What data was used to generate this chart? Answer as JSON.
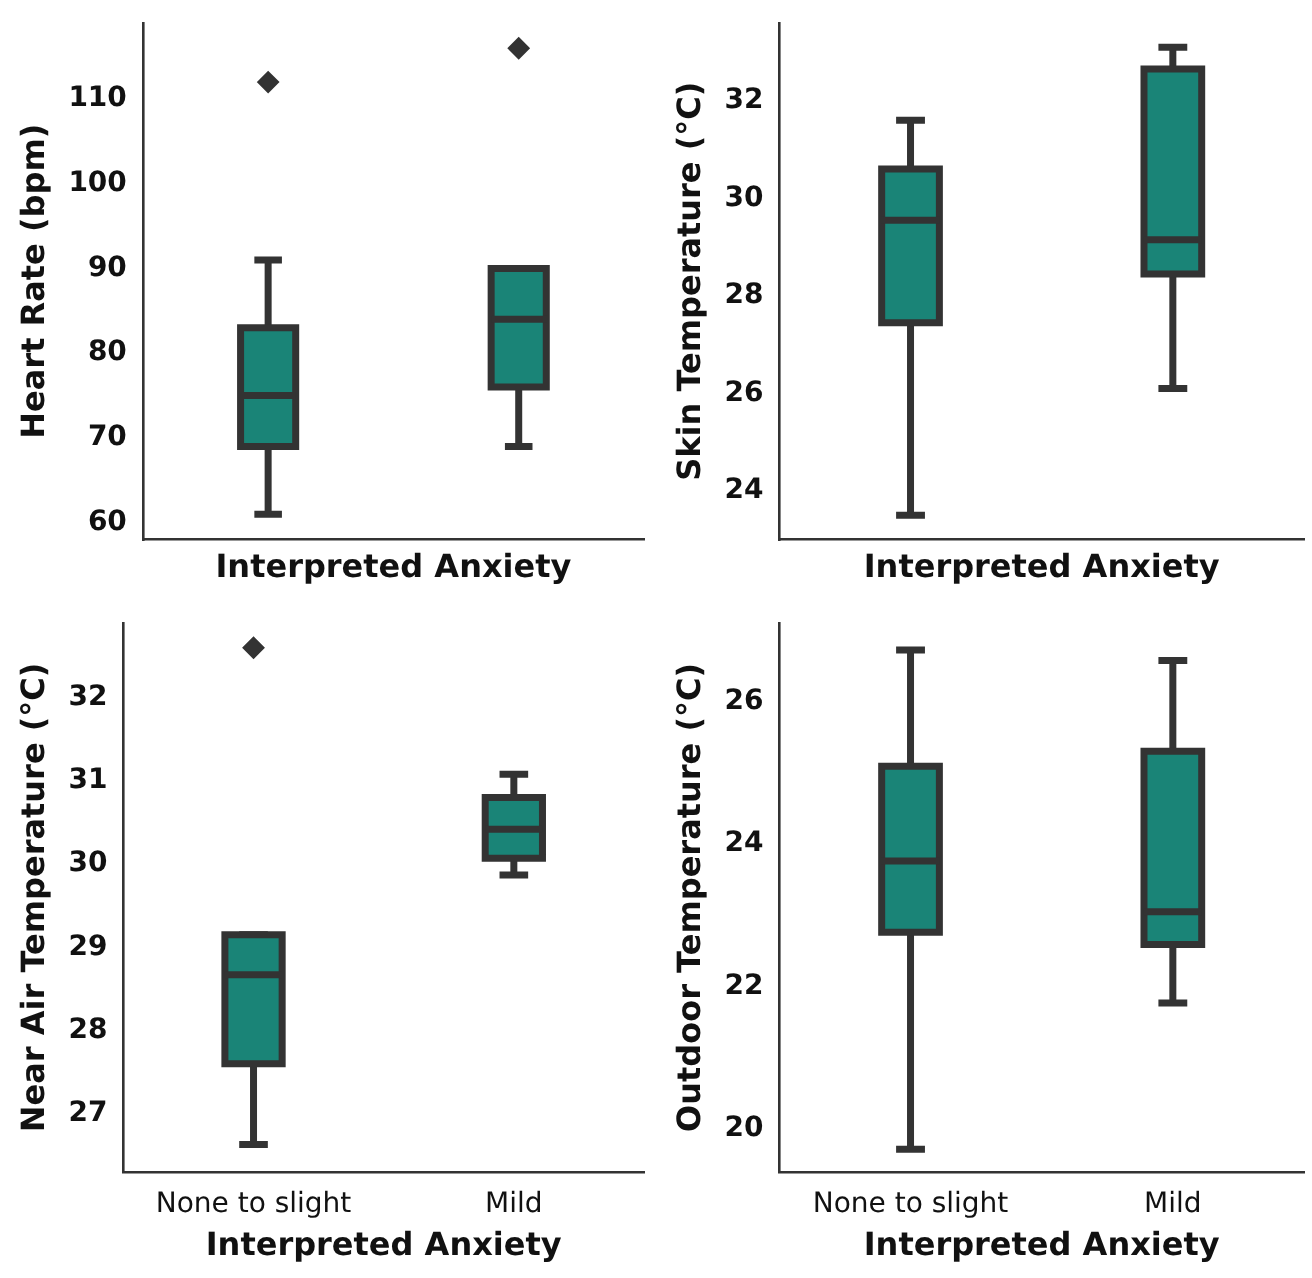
{
  "chart_data": [
    {
      "type": "box",
      "xlabel": "Interpreted Anxiety",
      "ylabel": "Heart Rate (bpm)",
      "categories": [
        null,
        null
      ],
      "tick_labels": "y",
      "color": "#1a8477",
      "marker": "diamond",
      "grid": false,
      "ylim": [
        58,
        119
      ],
      "yticks": [
        60,
        70,
        80,
        90,
        100,
        110
      ],
      "boxes": [
        {
          "low": 61,
          "q1": 69,
          "median": 75,
          "q3": 83,
          "high": 91,
          "outliers": [
            112
          ]
        },
        {
          "low": 69,
          "q1": 76,
          "median": 84,
          "q3": 90,
          "high": 90,
          "outliers": [
            116
          ]
        }
      ]
    },
    {
      "type": "box",
      "xlabel": "Interpreted Anxiety",
      "ylabel": "Skin Temperature (°C)",
      "categories": [
        null,
        null
      ],
      "tick_labels": "y",
      "color": "#1a8477",
      "marker": "diamond",
      "grid": false,
      "ylim": [
        23,
        33.6
      ],
      "yticks": [
        24,
        26,
        28,
        30,
        32
      ],
      "boxes": [
        {
          "low": 23.5,
          "q1": 27.45,
          "median": 29.55,
          "q3": 30.6,
          "high": 31.6
        },
        {
          "low": 26.1,
          "q1": 28.45,
          "median": 29.15,
          "q3": 32.65,
          "high": 33.1
        }
      ]
    },
    {
      "type": "box",
      "xlabel": "Interpreted Anxiety",
      "ylabel": "Near Air Temperature (°C)",
      "categories": [
        "None to slight",
        "Mild"
      ],
      "color": "#1a8477",
      "marker": "diamond",
      "grid": false,
      "ylim": [
        26.3,
        32.9
      ],
      "yticks": [
        27,
        28,
        29,
        30,
        31,
        32
      ],
      "boxes": [
        {
          "low": 26.63,
          "q1": 27.6,
          "median": 28.67,
          "q3": 29.15,
          "high": 29.15,
          "outliers": [
            32.6
          ]
        },
        {
          "low": 29.87,
          "q1": 30.07,
          "median": 30.42,
          "q3": 30.8,
          "high": 31.08
        }
      ]
    },
    {
      "type": "box",
      "xlabel": "Interpreted Anxiety",
      "ylabel": "Outdoor Temperature (°C)",
      "categories": [
        "None to slight",
        "Mild"
      ],
      "color": "#1a8477",
      "marker": "diamond",
      "grid": false,
      "ylim": [
        19.4,
        27.1
      ],
      "yticks": [
        20,
        22,
        24,
        26
      ],
      "boxes": [
        {
          "low": 19.72,
          "q1": 22.76,
          "median": 23.76,
          "q3": 25.09,
          "high": 26.72
        },
        {
          "low": 21.77,
          "q1": 22.59,
          "median": 23.05,
          "q3": 25.3,
          "high": 26.57
        }
      ]
    }
  ]
}
